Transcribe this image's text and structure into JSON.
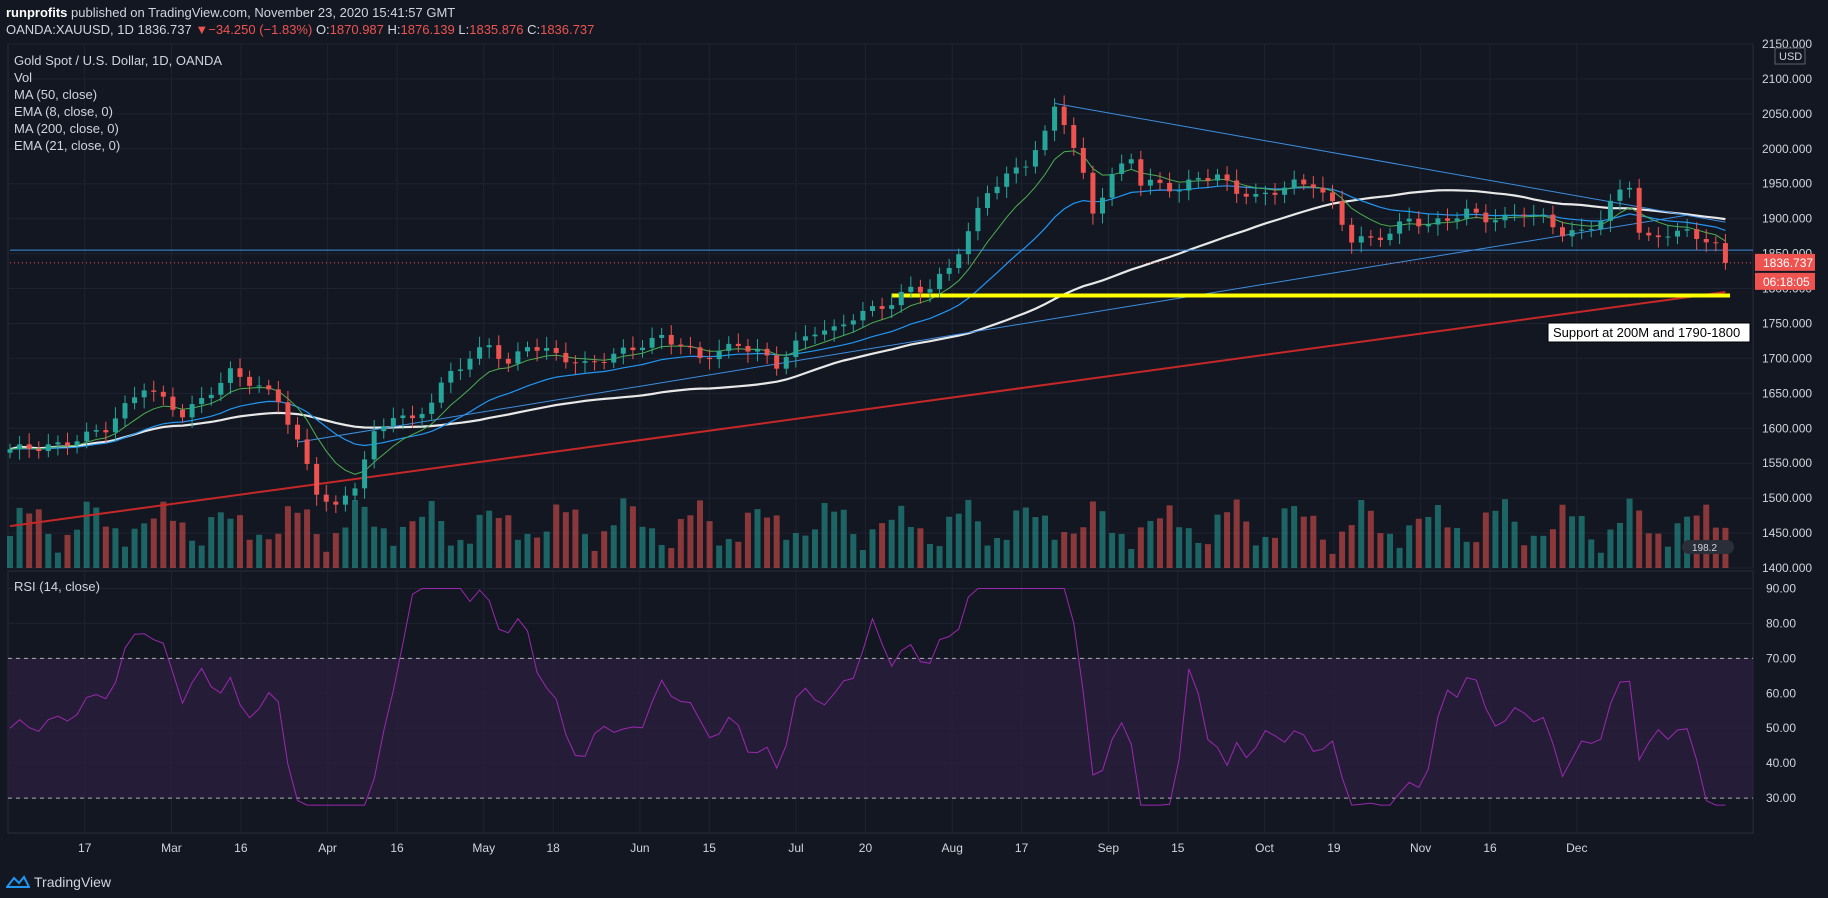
{
  "header": {
    "user": "runprofits",
    "published_text": "published on TradingView.com, November 23, 2020 15:41:57 GMT",
    "symbol": "OANDA:XAUUSD, 1D",
    "price": "1836.737",
    "change": "−34.250 (−1.83%)",
    "o_label": "O:",
    "o": "1870.987",
    "h_label": "H:",
    "h": "1876.139",
    "l_label": "L:",
    "l": "1835.876",
    "c_label": "C:",
    "c": "1836.737"
  },
  "legend": {
    "title": "Gold Spot / U.S. Dollar, 1D, OANDA",
    "vol": "Vol",
    "ma50": "MA (50, close)",
    "ema8": "EMA (8, close, 0)",
    "ma200": "MA (200, close, 0)",
    "ema21": "EMA (21, close, 0)"
  },
  "rsi_label": "RSI (14, close)",
  "annotation": "Support at 200M and 1790-1800",
  "price_tag": "1836.737",
  "countdown_tag": "06:18:05",
  "currency": "USD",
  "vol_badge": "198.2",
  "footer": {
    "brand": "TradingView"
  },
  "colors": {
    "background": "#131722",
    "up": "#26a69a",
    "down": "#ef5350",
    "ma50": "#e8e8e8",
    "ema8": "#4caf50",
    "ema21": "#2196f3",
    "ma200": "#c62828",
    "support": "#ffff00",
    "rsi": "#9c27b0"
  },
  "chart_data": {
    "type": "candlestick",
    "title": "Gold Spot / U.S. Dollar, 1D, OANDA",
    "price_axis": {
      "min": 1400,
      "max": 2150,
      "ticks": [
        "2150.000",
        "2100.000",
        "2050.000",
        "2000.000",
        "1950.000",
        "1900.000",
        "1850.000",
        "1800.000",
        "1750.000",
        "1700.000",
        "1650.000",
        "1600.000",
        "1550.000",
        "1500.000",
        "1450.000",
        "1400.000"
      ]
    },
    "rsi_axis": {
      "min": 20,
      "max": 95,
      "ticks": [
        "90.00",
        "80.00",
        "70.00",
        "60.00",
        "50.00",
        "40.00",
        "30.00"
      ],
      "overbought": 70,
      "oversold": 30
    },
    "x_ticks": [
      "17",
      "Mar",
      "16",
      "Apr",
      "16",
      "May",
      "18",
      "Jun",
      "15",
      "Jul",
      "20",
      "Aug",
      "17",
      "Sep",
      "15",
      "Oct",
      "19",
      "Nov",
      "16",
      "Dec"
    ],
    "price_path": [
      [
        0,
        1570
      ],
      [
        5,
        1575
      ],
      [
        10,
        1600
      ],
      [
        14,
        1660
      ],
      [
        16,
        1640
      ],
      [
        18,
        1620
      ],
      [
        20,
        1640
      ],
      [
        23,
        1680
      ],
      [
        26,
        1660
      ],
      [
        28,
        1640
      ],
      [
        30,
        1580
      ],
      [
        32,
        1510
      ],
      [
        34,
        1485
      ],
      [
        36,
        1520
      ],
      [
        38,
        1590
      ],
      [
        40,
        1620
      ],
      [
        42,
        1610
      ],
      [
        44,
        1640
      ],
      [
        46,
        1680
      ],
      [
        48,
        1700
      ],
      [
        50,
        1720
      ],
      [
        52,
        1690
      ],
      [
        54,
        1720
      ],
      [
        56,
        1710
      ],
      [
        58,
        1700
      ],
      [
        60,
        1690
      ],
      [
        62,
        1700
      ],
      [
        64,
        1710
      ],
      [
        66,
        1720
      ],
      [
        68,
        1730
      ],
      [
        70,
        1720
      ],
      [
        72,
        1700
      ],
      [
        74,
        1710
      ],
      [
        76,
        1720
      ],
      [
        78,
        1710
      ],
      [
        80,
        1690
      ],
      [
        82,
        1720
      ],
      [
        84,
        1740
      ],
      [
        86,
        1740
      ],
      [
        88,
        1760
      ],
      [
        90,
        1770
      ],
      [
        92,
        1780
      ],
      [
        94,
        1800
      ],
      [
        96,
        1800
      ],
      [
        98,
        1830
      ],
      [
        100,
        1880
      ],
      [
        102,
        1940
      ],
      [
        104,
        1960
      ],
      [
        106,
        1980
      ],
      [
        108,
        2020
      ],
      [
        109,
        2060
      ],
      [
        110,
        2040
      ],
      [
        112,
        1960
      ],
      [
        113,
        1910
      ],
      [
        115,
        1960
      ],
      [
        117,
        1990
      ],
      [
        118,
        1950
      ],
      [
        120,
        1950
      ],
      [
        122,
        1940
      ],
      [
        124,
        1960
      ],
      [
        126,
        1960
      ],
      [
        128,
        1940
      ],
      [
        130,
        1930
      ],
      [
        132,
        1940
      ],
      [
        134,
        1950
      ],
      [
        136,
        1950
      ],
      [
        138,
        1920
      ],
      [
        140,
        1870
      ],
      [
        142,
        1870
      ],
      [
        144,
        1880
      ],
      [
        146,
        1900
      ],
      [
        148,
        1890
      ],
      [
        150,
        1900
      ],
      [
        152,
        1910
      ],
      [
        154,
        1900
      ],
      [
        156,
        1900
      ],
      [
        158,
        1910
      ],
      [
        160,
        1900
      ],
      [
        162,
        1880
      ],
      [
        164,
        1880
      ],
      [
        166,
        1900
      ],
      [
        168,
        1940
      ],
      [
        169,
        1950
      ],
      [
        170,
        1880
      ],
      [
        171,
        1870
      ],
      [
        173,
        1880
      ],
      [
        175,
        1880
      ],
      [
        177,
        1870
      ],
      [
        178,
        1860
      ],
      [
        179,
        1837
      ]
    ],
    "volume_range": [
      1400,
      1580
    ],
    "ma200": {
      "start": 1460,
      "end": 1795
    },
    "support_level": [
      1790,
      1800
    ],
    "last_price": 1836.737
  }
}
